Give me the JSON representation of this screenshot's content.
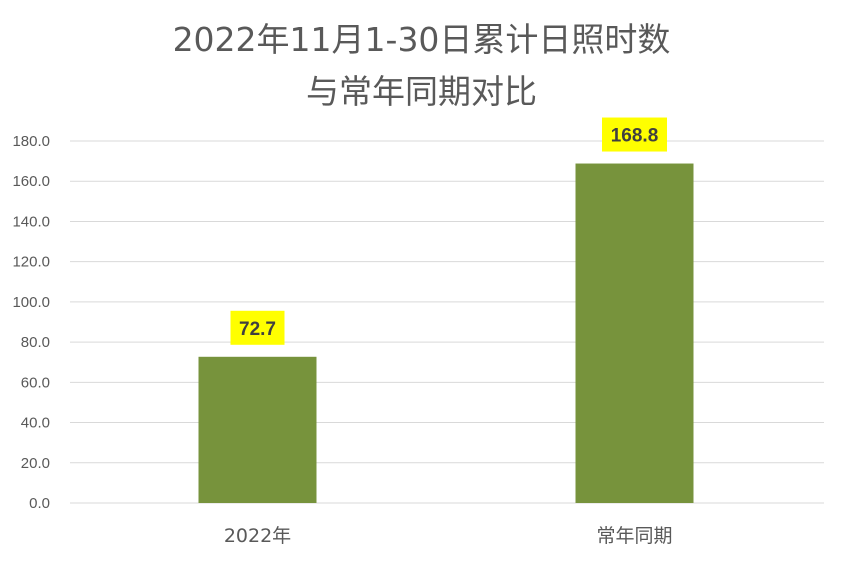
{
  "chart_data": {
    "type": "bar",
    "title_line1": "2022年11月1-30日累计日照时数",
    "title_line2": "与常年同期对比",
    "categories": [
      "2022年",
      "常年同期"
    ],
    "values": [
      72.7,
      168.8
    ],
    "data_labels": [
      "72.7",
      "168.8"
    ],
    "ylim": [
      0,
      180
    ],
    "ytick_labels": [
      "0.0",
      "20.0",
      "40.0",
      "60.0",
      "80.0",
      "100.0",
      "120.0",
      "140.0",
      "160.0",
      "180.0"
    ],
    "grid": true,
    "colors": {
      "bar": "#77933C",
      "label_bg": "#FFFF00",
      "grid": "#D9D9D9",
      "text": "#595959"
    }
  }
}
